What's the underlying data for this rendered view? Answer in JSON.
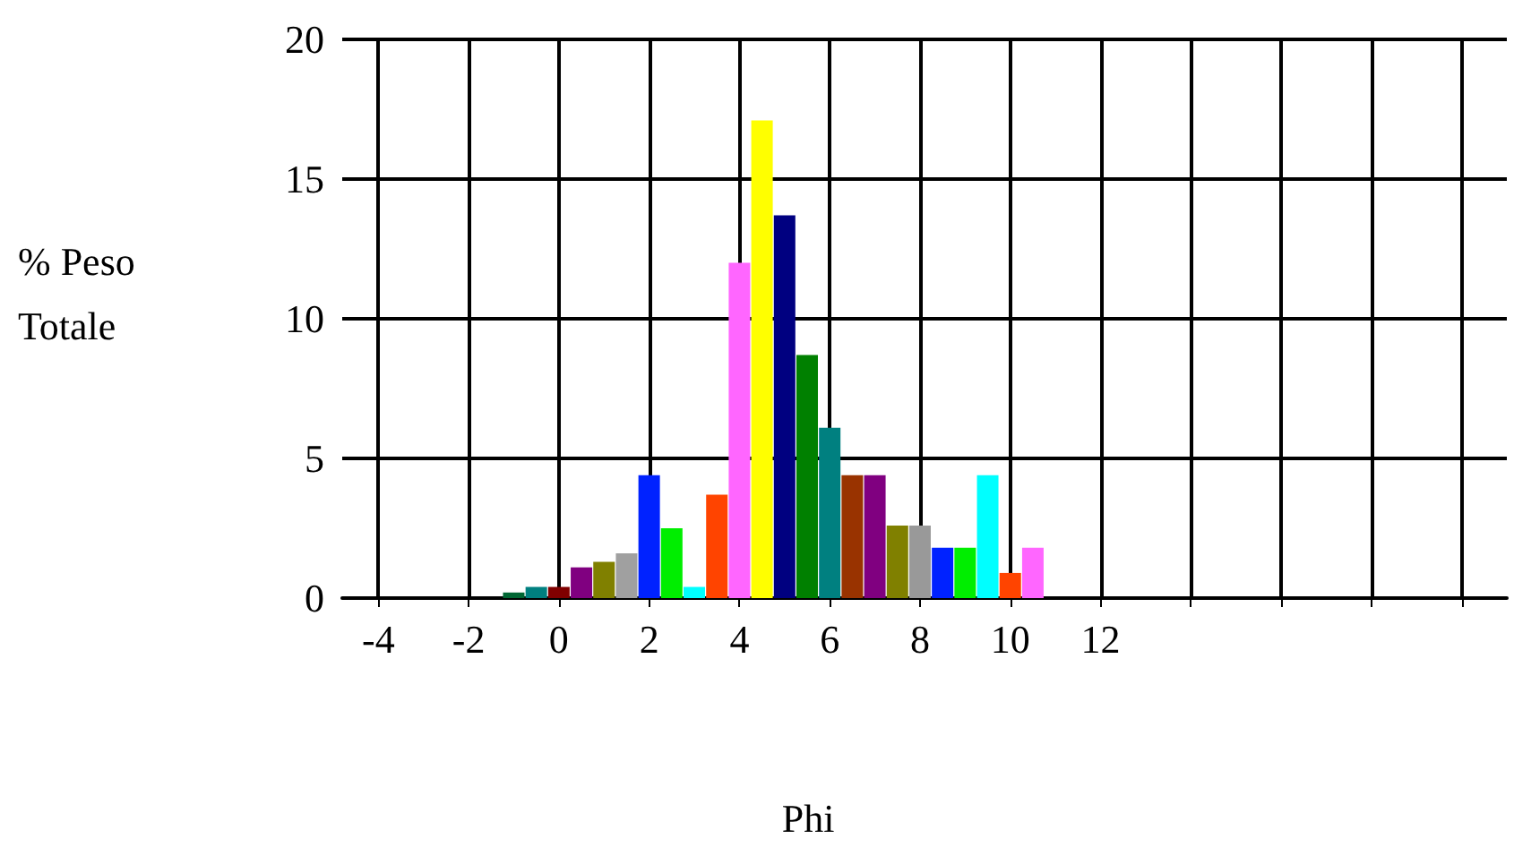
{
  "chart_data": {
    "type": "bar",
    "xlabel": "Phi",
    "ylabel": "% Peso Totale",
    "x": [
      -1,
      -0.5,
      0,
      0.5,
      1,
      1.5,
      2,
      2.5,
      3,
      3.5,
      4,
      4.5,
      5,
      5.5,
      6,
      6.5,
      7,
      7.5,
      8,
      8.5,
      9,
      9.5,
      10,
      10.5
    ],
    "values": [
      0.2,
      0.4,
      0.4,
      1.1,
      1.3,
      1.6,
      4.4,
      2.5,
      0.4,
      3.7,
      12,
      17.1,
      13.7,
      8.7,
      6.1,
      4.4,
      4.4,
      2.6,
      2.6,
      1.8,
      1.8,
      4.4,
      0.9,
      1.8
    ],
    "colors": [
      "#006633",
      "#008080",
      "#800000",
      "#800080",
      "#808000",
      "#a0a0a0",
      "#0022ff",
      "#00ee00",
      "#00ffff",
      "#ff4400",
      "#ff66ff",
      "#ffff00",
      "#000080",
      "#008000",
      "#008080",
      "#993300",
      "#800080",
      "#808000",
      "#999999",
      "#0022ff",
      "#00ee00",
      "#00ffff",
      "#ff4400",
      "#ff66ff"
    ],
    "xlim": [
      -4.8,
      21
    ],
    "xticks": [
      -4,
      -2,
      0,
      2,
      4,
      6,
      8,
      10,
      12,
      {
        "value": 14,
        "label": null
      },
      {
        "value": 16,
        "label": null
      },
      {
        "value": 18,
        "label": null
      },
      {
        "value": 20,
        "label": null
      }
    ],
    "ylim": [
      0,
      20
    ],
    "yticks": [
      0,
      5,
      10,
      15,
      20
    ],
    "grid": true
  }
}
